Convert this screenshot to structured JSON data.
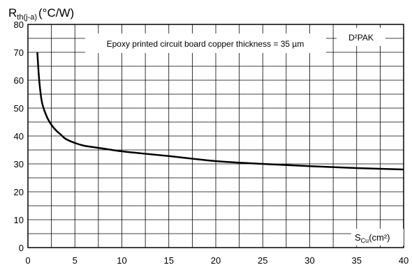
{
  "chart_data": {
    "type": "line",
    "ylabel_main": "R",
    "ylabel_sub": "th(j-a)",
    "ylabel_unit": "(°C/W)",
    "xlabel_main": "S",
    "xlabel_sub": "Cu",
    "xlabel_unit": "(cm²)",
    "annotations": {
      "note": "Epoxy printed circuit board copper thickness = 35 µm",
      "package": "D²PAK"
    },
    "xlim": [
      0,
      40
    ],
    "ylim": [
      0,
      80
    ],
    "x_ticks": [
      0,
      5,
      10,
      15,
      20,
      25,
      30,
      35,
      40
    ],
    "y_ticks": [
      0,
      10,
      20,
      30,
      40,
      50,
      60,
      70,
      80
    ],
    "grid": true,
    "series": [
      {
        "x": [
          1.0,
          1.2,
          1.5,
          2.0,
          2.5,
          3.0,
          3.5,
          4.0,
          5.0,
          6.0,
          7.0,
          8.0,
          10.0,
          12.0,
          15.0,
          20.0,
          25.0,
          30.0,
          35.0,
          40.0
        ],
        "y": [
          70,
          60,
          52,
          47,
          44,
          42,
          40.5,
          39,
          37.5,
          36.5,
          36,
          35.5,
          34.5,
          33.8,
          32.8,
          31,
          30,
          29.2,
          28.5,
          28
        ]
      }
    ]
  }
}
